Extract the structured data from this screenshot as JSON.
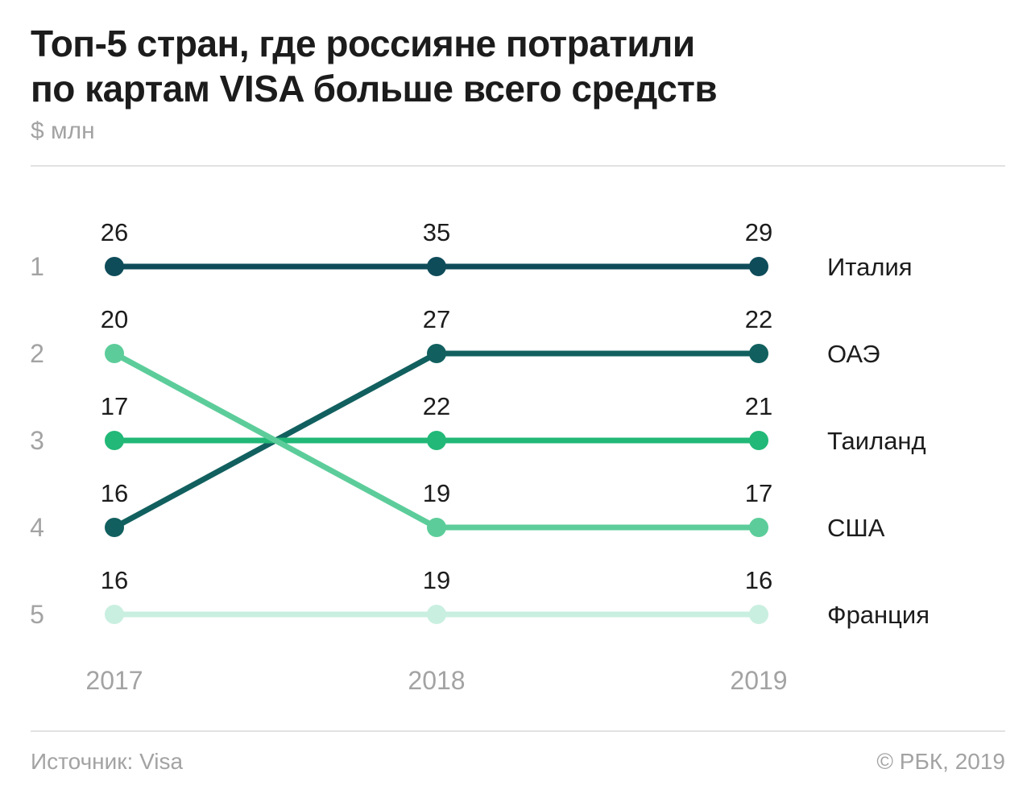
{
  "header": {
    "title_line1": "Топ-5 стран, где россияне потратили",
    "title_line2": "по картам VISA больше всего средств",
    "subtitle": "$ млн"
  },
  "footer": {
    "source": "Источник: Visa",
    "copyright": "© РБК, 2019"
  },
  "chart_data": {
    "type": "line",
    "x": [
      "2017",
      "2018",
      "2019"
    ],
    "rank_labels": [
      "1",
      "2",
      "3",
      "4",
      "5"
    ],
    "series": [
      {
        "name": "Италия",
        "ranks": [
          1,
          1,
          1
        ],
        "values": [
          26,
          35,
          29
        ],
        "color": "#0f4c5a"
      },
      {
        "name": "ОАЭ",
        "ranks": [
          4,
          2,
          2
        ],
        "values": [
          16,
          27,
          22
        ],
        "color": "#11605f"
      },
      {
        "name": "Таиланд",
        "ranks": [
          3,
          3,
          3
        ],
        "values": [
          17,
          22,
          21
        ],
        "color": "#22b877"
      },
      {
        "name": "США",
        "ranks": [
          2,
          4,
          4
        ],
        "values": [
          20,
          19,
          17
        ],
        "color": "#5ccd9a"
      },
      {
        "name": "Франция",
        "ranks": [
          5,
          5,
          5
        ],
        "values": [
          16,
          19,
          16
        ],
        "color": "#c9efe0"
      }
    ]
  },
  "colors": {
    "axis_text": "#a3a3a3",
    "label_text": "#1c1c1c"
  }
}
